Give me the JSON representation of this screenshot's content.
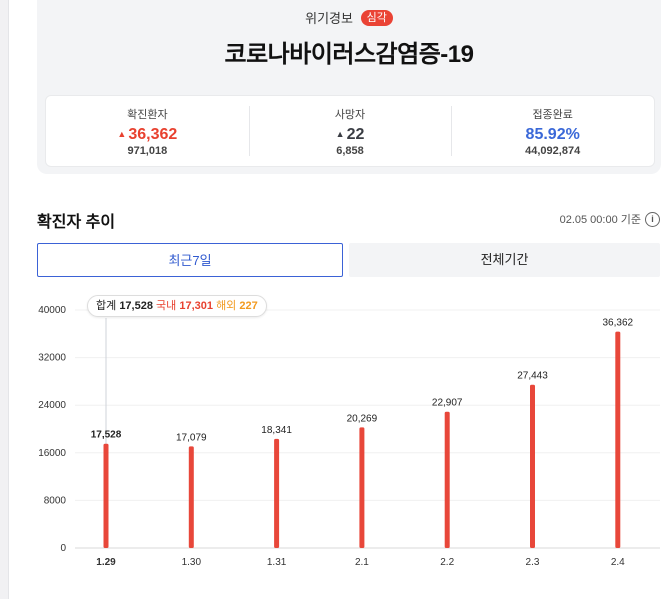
{
  "alert": {
    "label": "위기경보",
    "level": "심각"
  },
  "title": "코로나바이러스감염증-19",
  "stats": [
    {
      "label": "확진환자",
      "arrow": "▲",
      "value": "36,362",
      "total": "971,018",
      "color": "#e8412f"
    },
    {
      "label": "사망자",
      "arrow": "▲",
      "value": "22",
      "total": "6,858",
      "color": "#3a3d44"
    },
    {
      "label": "접종완료",
      "arrow": "",
      "value": "85.92%",
      "total": "44,092,874",
      "color": "#3a68d8"
    }
  ],
  "section": {
    "title": "확진자 추이",
    "base_time": "02.05 00:00 기준",
    "info_icon": "info-icon"
  },
  "tabs": [
    {
      "label": "최근7일",
      "active": true
    },
    {
      "label": "전체기간",
      "active": false
    }
  ],
  "tooltip": {
    "total_label": "합계",
    "total_value": "17,528",
    "domestic_label": "국내",
    "domestic_value": "17,301",
    "overseas_label": "해외",
    "overseas_value": "227"
  },
  "colors": {
    "bar": "#e8473a",
    "accent_blue": "#3b62d6",
    "badge": "#ea4335"
  },
  "chart_data": {
    "type": "bar",
    "categories": [
      "1.29",
      "1.30",
      "1.31",
      "2.1",
      "2.2",
      "2.3",
      "2.4"
    ],
    "values": [
      17528,
      17079,
      18341,
      20269,
      22907,
      27443,
      36362
    ],
    "value_labels": [
      "17,528",
      "17,079",
      "18,341",
      "20,269",
      "22,907",
      "27,443",
      "36,362"
    ],
    "yticks": [
      "0",
      "8000",
      "16000",
      "24000",
      "32000",
      "40000"
    ],
    "ylim": [
      0,
      40000
    ],
    "highlighted_index": 0,
    "grid": true
  }
}
